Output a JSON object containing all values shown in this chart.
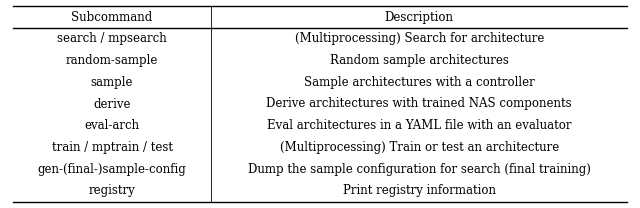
{
  "title_row": [
    "Subcommand",
    "Description"
  ],
  "rows": [
    [
      "search / mpsearch",
      "(Multiprocessing) Search for architecture"
    ],
    [
      "random-sample",
      "Random sample architectures"
    ],
    [
      "sample",
      "Sample architectures with a controller"
    ],
    [
      "derive",
      "Derive architectures with trained NAS components"
    ],
    [
      "eval-arch",
      "Eval architectures in a YAML file with an evaluator"
    ],
    [
      "train / mptrain / test",
      "(Multiprocessing) Train or test an architecture"
    ],
    [
      "gen-(final-)sample-config",
      "Dump the sample configuration for search (final training)"
    ],
    [
      "registry",
      "Print registry information"
    ]
  ],
  "col_split": 0.33,
  "bg_color": "#ffffff",
  "text_color": "#000000",
  "font_size": 8.5,
  "header_font_size": 8.5,
  "line_color": "#000000",
  "figsize": [
    6.4,
    2.08
  ],
  "dpi": 100
}
